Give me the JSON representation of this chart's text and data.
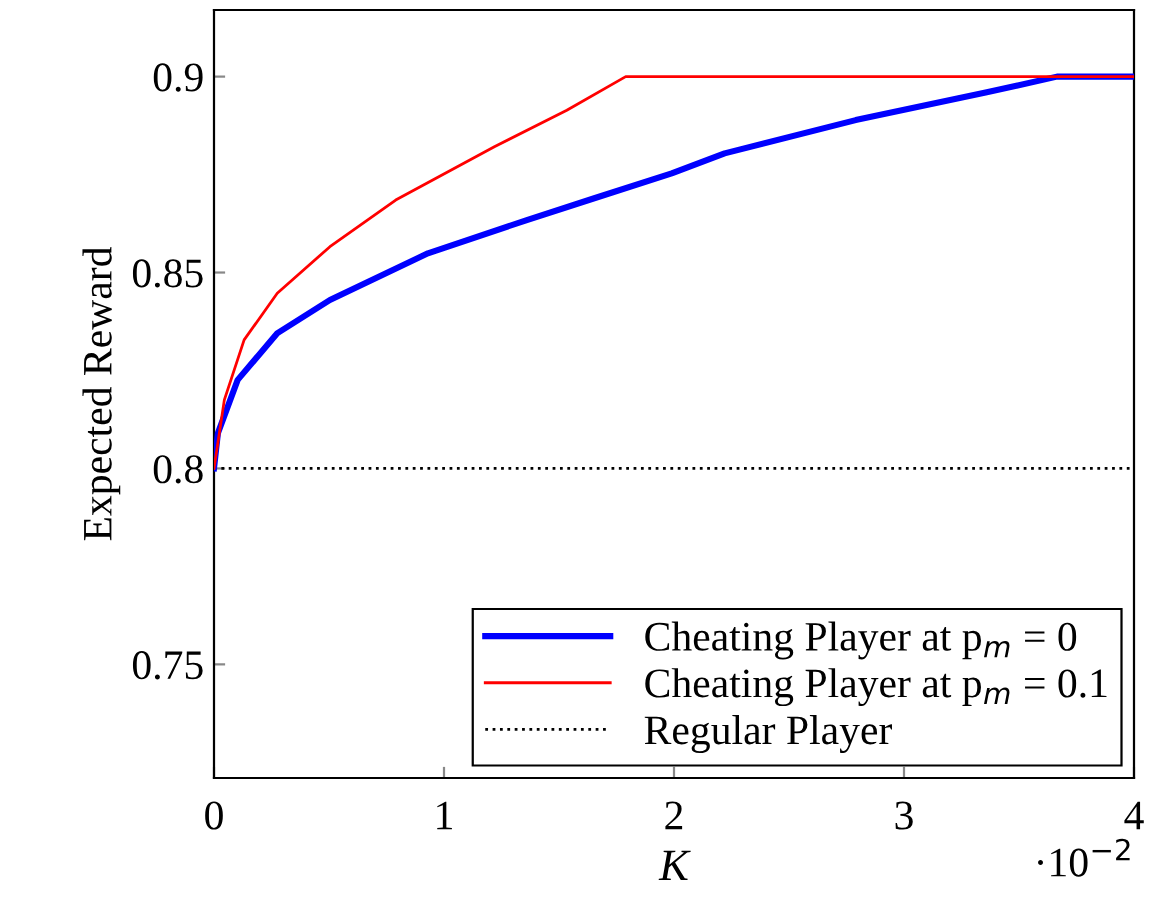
{
  "chart_data": {
    "type": "line",
    "xlabel": "K",
    "ylabel": "Expected Reward",
    "series": [
      {
        "name": "Cheating Player at p$_{m}$ = 0",
        "color": "#0000ff",
        "x": [
          0,
          0.017,
          0.103,
          0.275,
          0.504,
          0.93,
          1.36,
          1.65,
          1.99,
          2.22,
          2.79,
          3.36,
          3.665,
          4
        ],
        "values": [
          0.8,
          0.809,
          0.8226,
          0.8345,
          0.843,
          0.8549,
          0.8634,
          0.8689,
          0.8753,
          0.8804,
          0.8889,
          0.896,
          0.9,
          0.9
        ]
      },
      {
        "name": "Cheating Player at p$_{m}$ = 0.1",
        "color": "#ff0000",
        "x": [
          0,
          0.045,
          0.131,
          0.275,
          0.504,
          0.79,
          1.219,
          1.534,
          1.79,
          4
        ],
        "values": [
          0.8,
          0.8175,
          0.8328,
          0.8447,
          0.8566,
          0.8685,
          0.8821,
          0.8914,
          0.9,
          0.9
        ]
      }
    ],
    "ref_lines": [
      {
        "axis": "y",
        "value": 0.8,
        "label": "Regular Player",
        "color": "#000000",
        "line_style": "dotted"
      }
    ],
    "annotations": [
      "·10$^{−2}$"
    ],
    "xlim": [
      0,
      4
    ],
    "ylim": [
      0.721,
      0.917
    ],
    "xticks": [
      0,
      1,
      2,
      3,
      4
    ],
    "yticks": [
      0.75,
      0.8,
      0.85,
      0.9
    ],
    "grid": false,
    "legend": "bottom right",
    "line_style": "solid",
    "marker": "none"
  }
}
